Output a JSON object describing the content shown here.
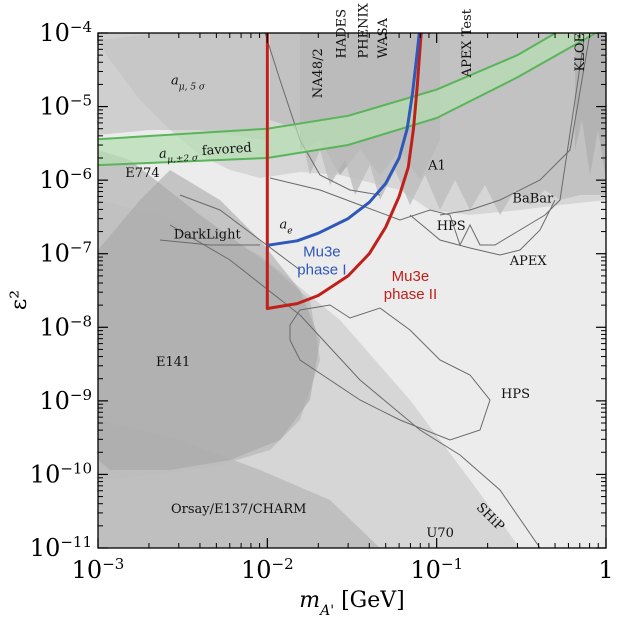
{
  "chart_data": {
    "type": "exclusion",
    "title": "",
    "xlabel": "m_{A'} [GeV]",
    "xlabel_main": "m",
    "xlabel_sub": "A'",
    "xlabel_unit": " [GeV]",
    "ylabel": "ε²",
    "xscale": "log",
    "yscale": "log",
    "xlim": [
      0.001,
      1
    ],
    "ylim": [
      1e-11,
      0.0001
    ],
    "x_ticks": [
      {
        "value": 0.001,
        "base": "10",
        "exp": "−3"
      },
      {
        "value": 0.01,
        "base": "10",
        "exp": "−2"
      },
      {
        "value": 0.1,
        "base": "10",
        "exp": "−1"
      },
      {
        "value": 1,
        "base": "1",
        "exp": ""
      }
    ],
    "y_ticks": [
      {
        "value": 1e-11,
        "base": "10",
        "exp": "−11"
      },
      {
        "value": 1e-10,
        "base": "10",
        "exp": "−10"
      },
      {
        "value": 1e-09,
        "base": "10",
        "exp": "−9"
      },
      {
        "value": 1e-08,
        "base": "10",
        "exp": "−8"
      },
      {
        "value": 1e-07,
        "base": "10",
        "exp": "−7"
      },
      {
        "value": 1e-06,
        "base": "10",
        "exp": "−6"
      },
      {
        "value": 1e-05,
        "base": "10",
        "exp": "−5"
      },
      {
        "value": 0.0001,
        "base": "10",
        "exp": "−4"
      }
    ],
    "colors": {
      "frame": "#000000",
      "mu3e_phase1": "#2f58b8",
      "mu3e_phase2": "#c0201a",
      "g2_band": "#5ab45a",
      "g2_fill": "#b5e0b0",
      "region_light": "#d6d6d6",
      "region_mid": "#bdbdbd",
      "region_dark": "#a4a4a4",
      "contour": "#6a6a6a"
    },
    "series": [
      {
        "name": "Mu3e phase I",
        "label_lines": [
          "Mu3e",
          "phase I"
        ],
        "points": [
          [
            0.01,
            1.3e-07
          ],
          [
            0.015,
            1.5e-07
          ],
          [
            0.02,
            1.9e-07
          ],
          [
            0.03,
            3e-07
          ],
          [
            0.04,
            5e-07
          ],
          [
            0.05,
            9e-07
          ],
          [
            0.06,
            2e-06
          ],
          [
            0.067,
            5e-06
          ],
          [
            0.072,
            1.5e-05
          ],
          [
            0.076,
            4.5e-05
          ],
          [
            0.079,
            0.0001
          ]
        ]
      },
      {
        "name": "Mu3e phase II",
        "label_lines": [
          "Mu3e",
          "phase II"
        ],
        "points": [
          [
            0.01,
            0.0001
          ],
          [
            0.01,
            1.8e-08
          ],
          [
            0.015,
            2.1e-08
          ],
          [
            0.02,
            2.7e-08
          ],
          [
            0.03,
            5e-08
          ],
          [
            0.04,
            1e-07
          ],
          [
            0.05,
            2.3e-07
          ],
          [
            0.06,
            6e-07
          ],
          [
            0.068,
            1.5e-06
          ],
          [
            0.073,
            5e-06
          ],
          [
            0.077,
            2e-05
          ],
          [
            0.08,
            7e-05
          ],
          [
            0.081,
            0.0001
          ]
        ]
      },
      {
        "name": "a_mu ±2σ favored",
        "lower": [
          [
            0.001,
            1.6e-06
          ],
          [
            0.01,
            2e-06
          ],
          [
            0.03,
            3e-06
          ],
          [
            0.1,
            7e-06
          ],
          [
            0.3,
            2.5e-05
          ],
          [
            1,
            0.00012
          ]
        ],
        "upper": [
          [
            0.001,
            3.6e-06
          ],
          [
            0.01,
            5e-06
          ],
          [
            0.03,
            7.5e-06
          ],
          [
            0.1,
            1.7e-05
          ],
          [
            0.3,
            5e-05
          ],
          [
            1,
            0.00025
          ]
        ]
      }
    ],
    "region_labels": [
      {
        "text": "E774",
        "x": 0.00145,
        "y": 1.1e-06
      },
      {
        "text": "DarkLight",
        "x": 0.0028,
        "y": 1.6e-07
      },
      {
        "text": "E141",
        "x": 0.0022,
        "y": 3e-09
      },
      {
        "text": "Orsay/E137/CHARM",
        "x": 0.0027,
        "y": 3e-11
      },
      {
        "text": "U70",
        "x": 0.087,
        "y": 1.4e-11
      },
      {
        "text": "SHiP",
        "x": 0.17,
        "y": 3.5e-11
      },
      {
        "text": "HPS",
        "x": 0.24,
        "y": 1.1e-09
      },
      {
        "text": "HPS",
        "x": 0.1,
        "y": 2.1e-07
      },
      {
        "text": "APEX",
        "x": 0.27,
        "y": 7e-08
      },
      {
        "text": "BaBar",
        "x": 0.28,
        "y": 5e-07
      },
      {
        "text": "A1",
        "x": 0.089,
        "y": 1.4e-06
      },
      {
        "text": "APEX Test",
        "x": 0.16,
        "y": 2.5e-05
      },
      {
        "text": "KLOE",
        "x": 0.74,
        "y": 3e-05
      },
      {
        "text": "NA48/2",
        "x": 0.021,
        "y": 1.3e-05
      },
      {
        "text": "HADES",
        "x": 0.029,
        "y": 4.5e-05
      },
      {
        "text": "PHENIX",
        "x": 0.039,
        "y": 4.5e-05
      },
      {
        "text": "WASA",
        "x": 0.051,
        "y": 4.5e-05
      },
      {
        "text_main": "a",
        "text_sub": "μ, 5 σ",
        "x": 0.0027,
        "y": 2e-05
      },
      {
        "text_main": "a",
        "text_sub": "e",
        "x": 0.0118,
        "y": 2.2e-07
      },
      {
        "text_main": "a",
        "text_sub": "μ,±2 σ",
        "text_suffix": " favored",
        "x": 0.0023,
        "y": 2e-06
      }
    ]
  }
}
